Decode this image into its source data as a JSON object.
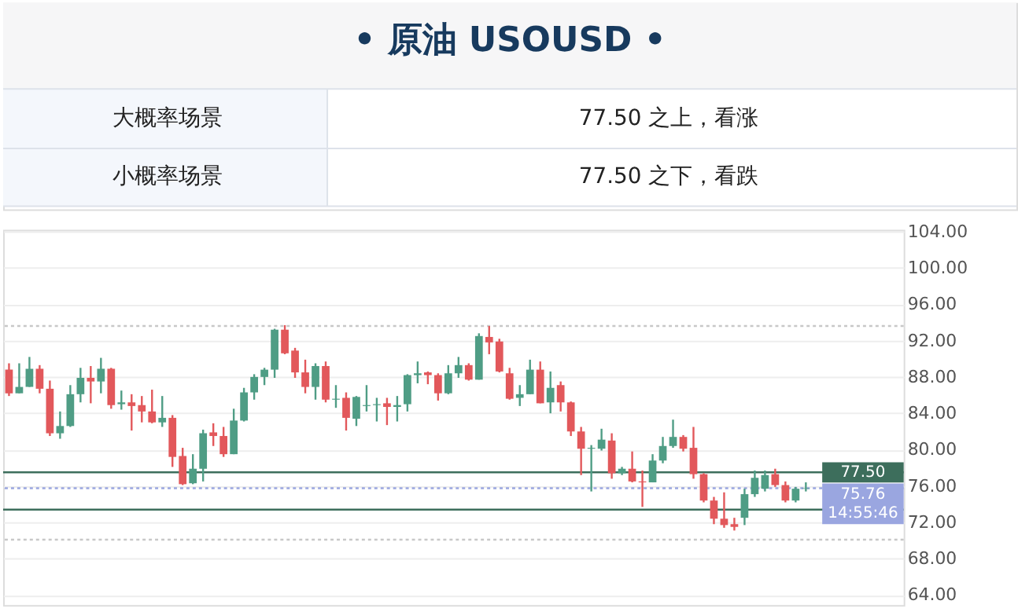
{
  "chart_data": {
    "type": "candlestick",
    "title": "• 原油 USOUSD •",
    "annotations": [
      "大概率场景",
      "77.50 之上，看涨",
      "小概率场景",
      "77.50 之下，看跌"
    ],
    "categories": [
      null,
      null,
      null,
      null,
      null,
      null,
      null,
      null,
      null,
      null,
      null,
      null,
      null,
      null,
      null,
      null,
      null,
      null,
      null,
      null,
      null,
      null,
      null,
      null,
      null,
      null,
      null,
      null,
      null,
      null,
      null,
      null,
      null,
      null,
      null,
      null,
      null,
      null,
      null,
      null,
      null,
      null,
      null,
      null,
      null,
      null,
      null,
      null,
      null,
      null,
      null,
      null,
      null,
      null,
      null,
      null,
      null,
      null,
      null,
      null,
      null,
      null,
      null,
      null,
      null,
      null,
      null,
      null,
      null,
      null,
      null,
      null,
      null,
      null,
      null,
      null,
      null,
      null,
      null,
      null,
      null,
      null,
      null,
      null,
      null,
      null,
      null,
      null
    ],
    "ohlc": [
      [
        88.8,
        89.5,
        85.9,
        86.2
      ],
      [
        86.2,
        89.5,
        86.2,
        86.9
      ],
      [
        86.9,
        90.2,
        86.9,
        88.9
      ],
      [
        88.9,
        89.3,
        86.2,
        86.7
      ],
      [
        86.7,
        87.6,
        81.5,
        81.8
      ],
      [
        81.8,
        84.2,
        81.2,
        82.6
      ],
      [
        82.6,
        87.1,
        82.5,
        86.1
      ],
      [
        86.1,
        89.0,
        85.2,
        87.9
      ],
      [
        87.9,
        89.2,
        85.1,
        87.5
      ],
      [
        87.5,
        90.1,
        86.2,
        88.9
      ],
      [
        88.9,
        89.0,
        84.5,
        84.9
      ],
      [
        85.0,
        86.5,
        84.4,
        85.2
      ],
      [
        85.2,
        86.1,
        82.1,
        84.8
      ],
      [
        84.9,
        85.9,
        83.0,
        84.2
      ],
      [
        84.2,
        86.6,
        82.9,
        83.0
      ],
      [
        83.0,
        85.9,
        82.5,
        83.5
      ],
      [
        83.5,
        83.8,
        78.1,
        79.2
      ],
      [
        79.3,
        80.2,
        76.1,
        76.2
      ],
      [
        76.3,
        79.5,
        76.2,
        77.9
      ],
      [
        77.9,
        82.2,
        76.5,
        81.8
      ],
      [
        81.9,
        82.9,
        80.4,
        81.5
      ],
      [
        81.5,
        82.5,
        79.2,
        79.5
      ],
      [
        79.5,
        84.5,
        79.5,
        83.2
      ],
      [
        83.2,
        86.8,
        83.1,
        86.3
      ],
      [
        86.3,
        88.3,
        85.5,
        88.0
      ],
      [
        88.0,
        89.0,
        87.1,
        88.8
      ],
      [
        88.8,
        93.3,
        87.9,
        93.2
      ],
      [
        93.2,
        93.7,
        90.5,
        90.6
      ],
      [
        90.9,
        91.2,
        87.9,
        88.5
      ],
      [
        88.5,
        89.9,
        86.2,
        86.9
      ],
      [
        86.9,
        89.5,
        85.5,
        89.2
      ],
      [
        89.2,
        89.7,
        85.2,
        85.5
      ],
      [
        85.5,
        87.1,
        84.6,
        85.6
      ],
      [
        85.7,
        86.3,
        82.1,
        83.5
      ],
      [
        83.4,
        85.9,
        82.6,
        85.8
      ],
      [
        84.8,
        87.1,
        84.2,
        84.9
      ],
      [
        84.9,
        85.7,
        83.1,
        85.0
      ],
      [
        85.1,
        85.7,
        82.7,
        84.7
      ],
      [
        84.7,
        85.9,
        83.1,
        84.9
      ],
      [
        85.0,
        88.3,
        84.2,
        88.2
      ],
      [
        88.2,
        89.7,
        87.3,
        88.4
      ],
      [
        88.5,
        88.6,
        87.2,
        88.2
      ],
      [
        88.2,
        88.4,
        85.4,
        86.2
      ],
      [
        86.2,
        89.3,
        86.1,
        88.4
      ],
      [
        88.4,
        90.2,
        87.9,
        89.3
      ],
      [
        89.3,
        89.5,
        87.6,
        87.7
      ],
      [
        87.7,
        92.8,
        87.7,
        92.5
      ],
      [
        92.4,
        93.6,
        90.5,
        91.8
      ],
      [
        91.9,
        92.2,
        88.5,
        88.6
      ],
      [
        88.4,
        89.0,
        85.5,
        85.6
      ],
      [
        85.7,
        87.1,
        84.8,
        86.1
      ],
      [
        86.1,
        89.9,
        86.1,
        88.8
      ],
      [
        88.8,
        89.7,
        85.1,
        85.1
      ],
      [
        85.2,
        88.6,
        84.0,
        86.8
      ],
      [
        87.1,
        87.5,
        84.2,
        85.2
      ],
      [
        85.2,
        85.3,
        81.5,
        82.0
      ],
      [
        82.0,
        82.5,
        77.2,
        80.1
      ],
      [
        80.1,
        80.5,
        75.4,
        80.2
      ],
      [
        80.1,
        82.3,
        79.9,
        81.1
      ],
      [
        81.0,
        81.8,
        76.8,
        77.4
      ],
      [
        77.4,
        78.1,
        77.2,
        77.9
      ],
      [
        77.9,
        79.8,
        76.4,
        76.5
      ],
      [
        76.5,
        77.7,
        73.7,
        76.4
      ],
      [
        76.4,
        79.5,
        76.4,
        78.8
      ],
      [
        78.8,
        81.4,
        78.5,
        80.4
      ],
      [
        80.4,
        83.3,
        80.2,
        81.4
      ],
      [
        81.4,
        81.6,
        79.8,
        80.1
      ],
      [
        80.2,
        82.5,
        76.8,
        77.3
      ],
      [
        77.3,
        77.4,
        74.2,
        74.4
      ],
      [
        74.4,
        74.8,
        71.8,
        72.4
      ],
      [
        72.4,
        75.3,
        71.4,
        71.7
      ],
      [
        71.8,
        72.5,
        71.1,
        71.5
      ],
      [
        72.5,
        75.7,
        71.7,
        75.1
      ],
      [
        75.1,
        77.7,
        74.8,
        76.9
      ],
      [
        75.7,
        77.7,
        75.4,
        77.2
      ],
      [
        77.3,
        77.9,
        75.9,
        76.1
      ],
      [
        76.1,
        76.5,
        74.2,
        74.4
      ],
      [
        74.4,
        75.9,
        74.2,
        75.7
      ],
      [
        75.7,
        76.4,
        75.4,
        75.76
      ],
      null,
      null,
      null,
      null,
      null,
      null,
      null,
      null,
      null
    ],
    "colors": [
      "#e2585b",
      "#4f9d85",
      "#4f9d85",
      "#e2585b",
      "#e2585b",
      "#4f9d85",
      "#4f9d85",
      "#4f9d85",
      "#e2585b",
      "#4f9d85",
      "#e2585b",
      "#4f9d85",
      "#e2585b",
      "#e2585b",
      "#e2585b",
      "#4f9d85",
      "#e2585b",
      "#e2585b",
      "#4f9d85",
      "#4f9d85",
      "#e2585b",
      "#e2585b",
      "#4f9d85",
      "#4f9d85",
      "#4f9d85",
      "#4f9d85",
      "#4f9d85",
      "#e2585b",
      "#e2585b",
      "#e2585b",
      "#4f9d85",
      "#e2585b",
      "#4f9d85",
      "#e2585b",
      "#4f9d85",
      "#4f9d85",
      "#4f9d85",
      "#e2585b",
      "#4f9d85",
      "#4f9d85",
      "#4f9d85",
      "#e2585b",
      "#e2585b",
      "#4f9d85",
      "#4f9d85",
      "#e2585b",
      "#4f9d85",
      "#e2585b",
      "#e2585b",
      "#e2585b",
      "#4f9d85",
      "#4f9d85",
      "#e2585b",
      "#4f9d85",
      "#e2585b",
      "#e2585b",
      "#e2585b",
      "#4f9d85",
      "#4f9d85",
      "#e2585b",
      "#4f9d85",
      "#e2585b",
      "#e2585b",
      "#4f9d85",
      "#4f9d85",
      "#4f9d85",
      "#e2585b",
      "#e2585b",
      "#e2585b",
      "#e2585b",
      "#e2585b",
      "#e2585b",
      "#4f9d85",
      "#4f9d85",
      "#4f9d85",
      "#e2585b",
      "#e2585b",
      "#4f9d85",
      "#4f9d85",
      null,
      null,
      null,
      null,
      null,
      null,
      null,
      null,
      null
    ],
    "ylim": [
      62.9,
      104.2
    ],
    "yticks": [
      {
        "value": 64,
        "label": "64.00"
      },
      {
        "value": 68,
        "label": "68.00"
      },
      {
        "value": 72,
        "label": "72.00"
      },
      {
        "value": 76,
        "label": "76.00"
      },
      {
        "value": 80,
        "label": "80.00"
      },
      {
        "value": 84,
        "label": "84.00"
      },
      {
        "value": 88,
        "label": "88.00"
      },
      {
        "value": 92,
        "label": "92.00"
      },
      {
        "value": 96,
        "label": "96.00"
      },
      {
        "value": 100,
        "label": "100.00"
      },
      {
        "value": 104,
        "label": "104.00"
      }
    ],
    "ref_lines": [
      {
        "axis": "y",
        "value": 77.5,
        "label": "77.50",
        "color": "#3d6e5c",
        "line_style": "solid"
      },
      {
        "axis": "y",
        "value": 75.76,
        "label": "75.76 14:55:46",
        "color": "#9aa6e0",
        "line_style": "dotted"
      },
      {
        "axis": "y",
        "value": 73.4,
        "color": "#3d6e5c",
        "line_style": "solid"
      },
      {
        "axis": "y",
        "value": 93.6,
        "color": "#c8c8c8",
        "line_style": "dotted"
      },
      {
        "axis": "y",
        "value": 70.1,
        "color": "#c8c8c8",
        "line_style": "dotted"
      }
    ],
    "grid": "y",
    "tick_labels": "y"
  }
}
